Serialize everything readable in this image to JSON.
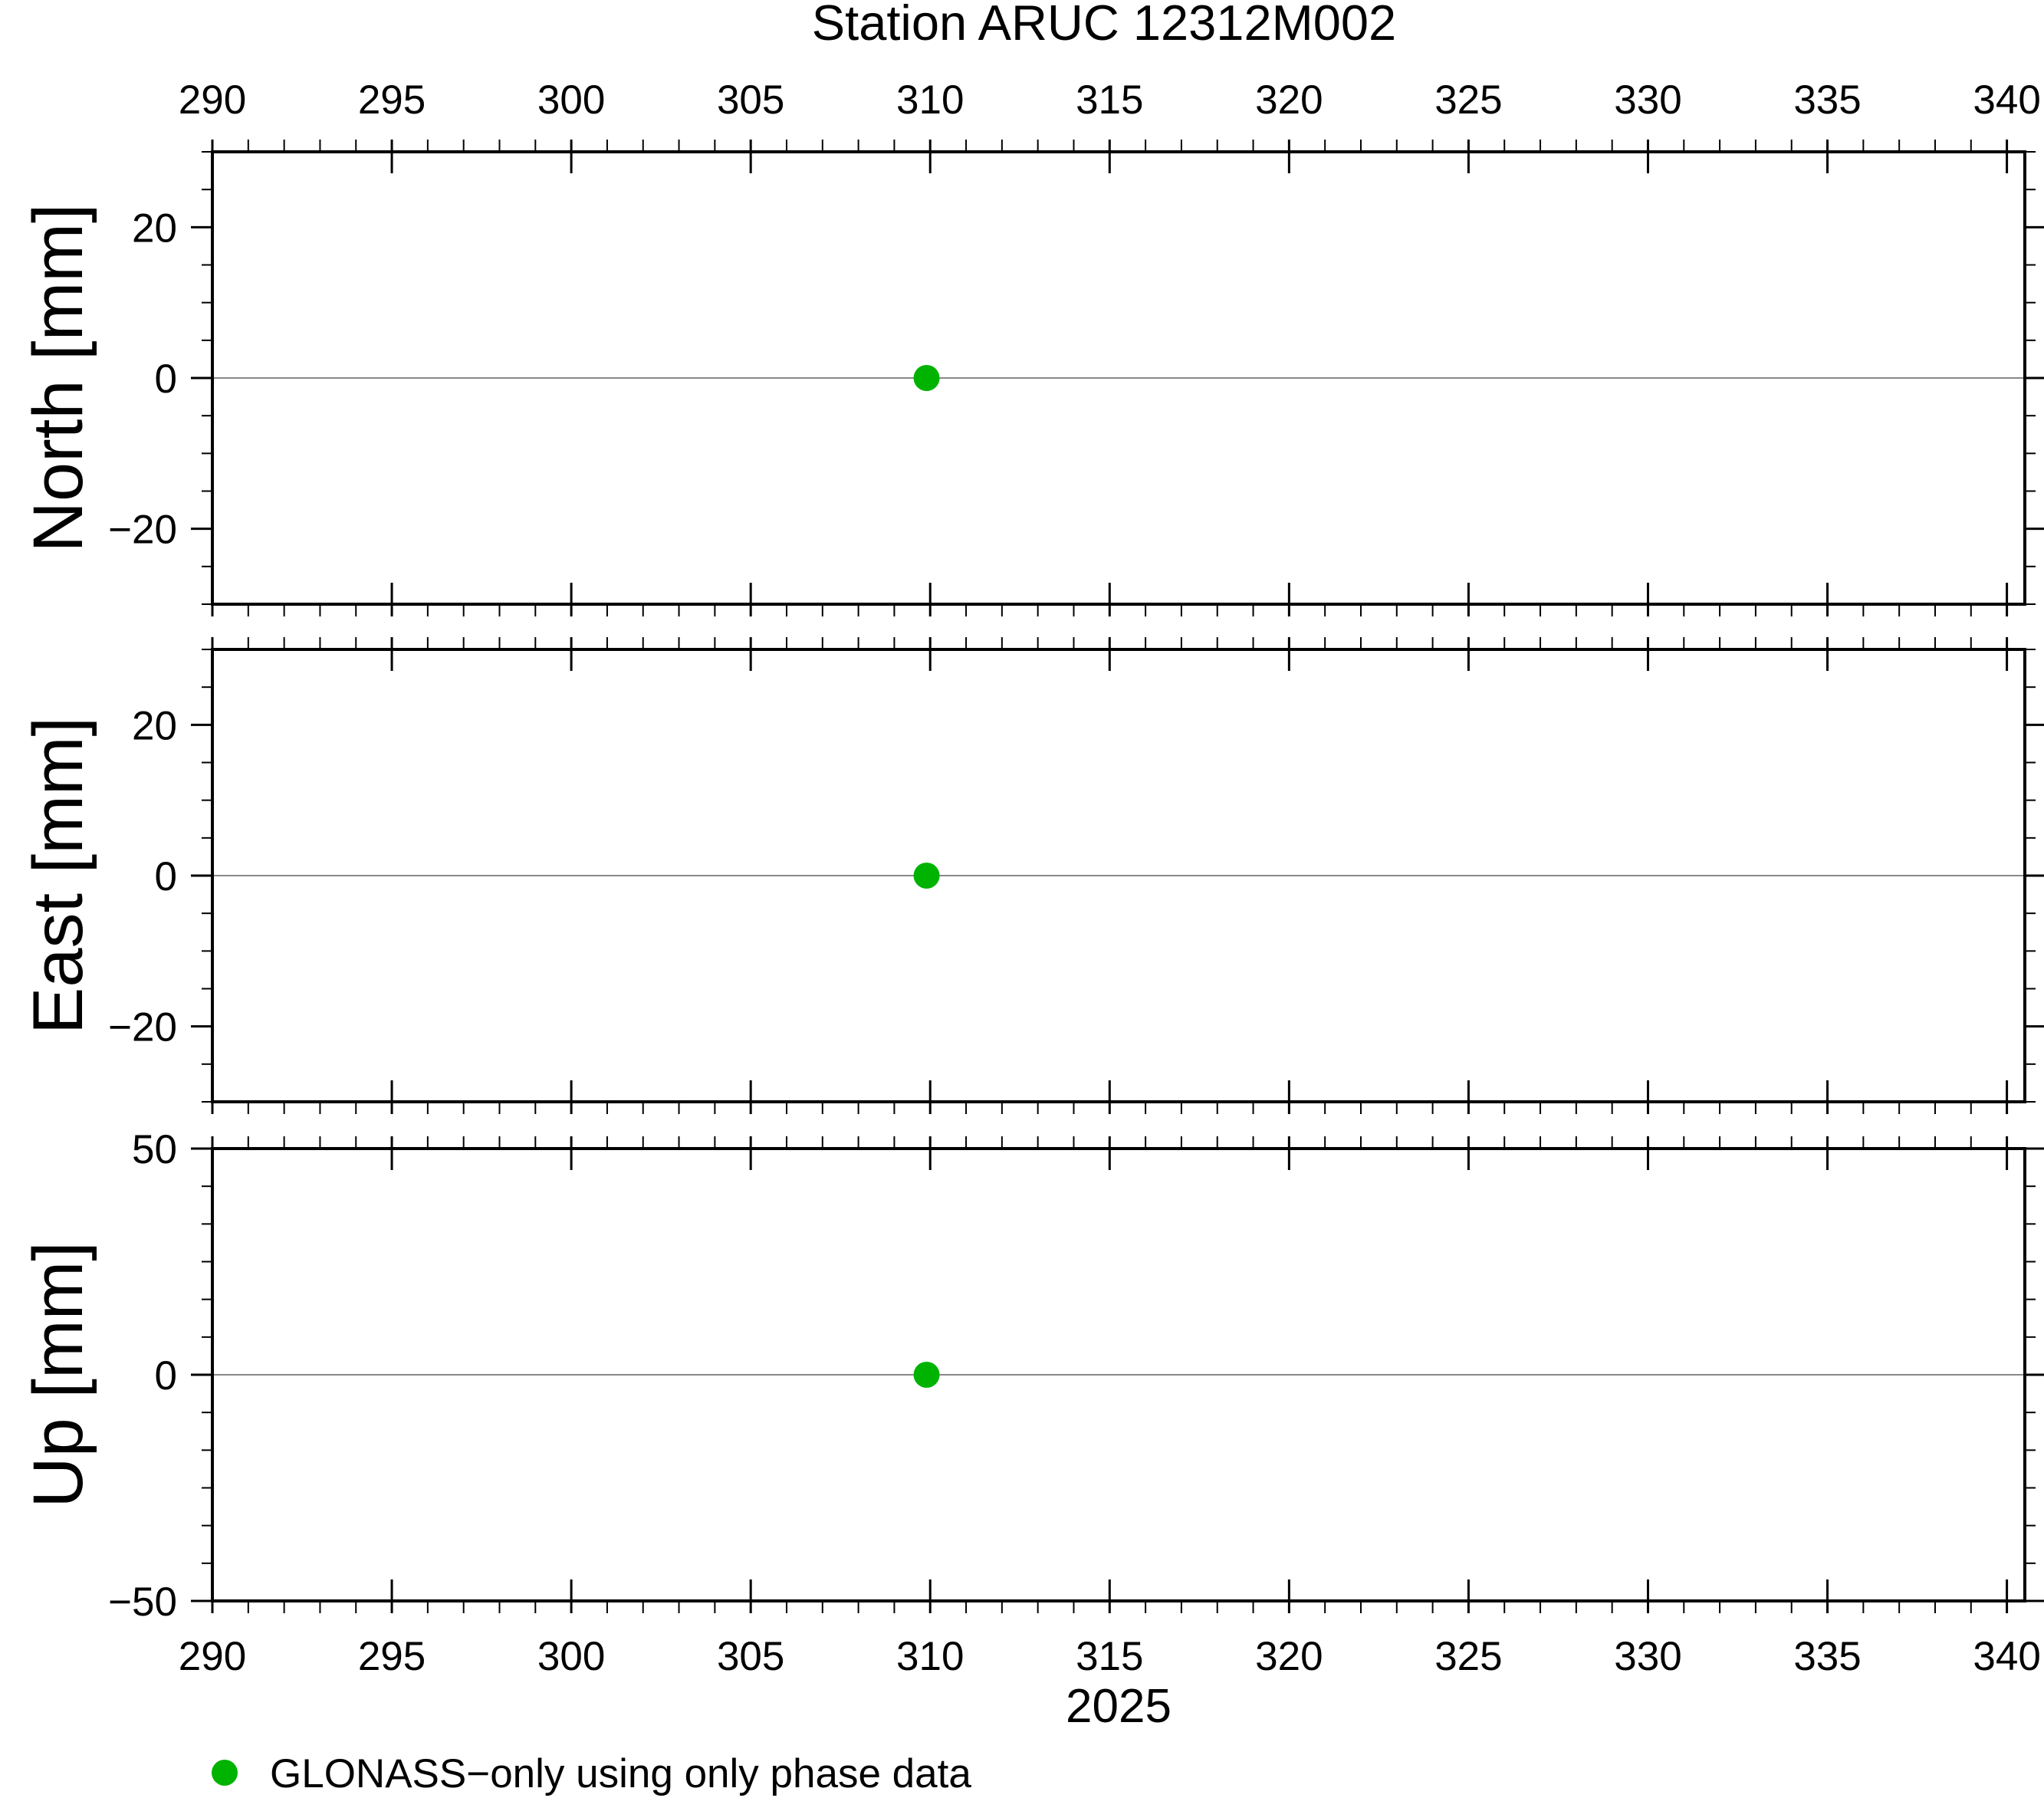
{
  "chart_data": [
    {
      "type": "scatter",
      "panel": "north",
      "title": "Station ARUC 12312M002",
      "ylabel": "North [mm]",
      "xlim": [
        290,
        340.5
      ],
      "ylim": [
        -30,
        30
      ],
      "x_ticks": [
        290,
        295,
        300,
        305,
        310,
        315,
        320,
        325,
        330,
        335,
        340
      ],
      "y_ticks": [
        -20,
        0,
        20
      ],
      "y_tick_labels": [
        "−20",
        "0",
        "20"
      ],
      "zero_line": true,
      "series": [
        {
          "name": "GLONASS−only using only phase data",
          "color": "#00b300",
          "points": [
            [
              309.9,
              0
            ]
          ]
        }
      ]
    },
    {
      "type": "scatter",
      "panel": "east",
      "ylabel": "East [mm]",
      "xlim": [
        290,
        340.5
      ],
      "ylim": [
        -30,
        30
      ],
      "x_ticks": [
        290,
        295,
        300,
        305,
        310,
        315,
        320,
        325,
        330,
        335,
        340
      ],
      "y_ticks": [
        -20,
        0,
        20
      ],
      "y_tick_labels": [
        "−20",
        "0",
        "20"
      ],
      "zero_line": true,
      "series": [
        {
          "name": "GLONASS−only using only phase data",
          "color": "#00b300",
          "points": [
            [
              309.9,
              0
            ]
          ]
        }
      ]
    },
    {
      "type": "scatter",
      "panel": "up",
      "ylabel": "Up [mm]",
      "xlabel": "2025",
      "xlim": [
        290,
        340.5
      ],
      "ylim": [
        -50,
        50
      ],
      "x_ticks": [
        290,
        295,
        300,
        305,
        310,
        315,
        320,
        325,
        330,
        335,
        340
      ],
      "y_ticks": [
        -50,
        0,
        50
      ],
      "y_tick_labels": [
        "−50",
        "0",
        "50"
      ],
      "zero_line": true,
      "series": [
        {
          "name": "GLONASS−only using only phase data",
          "color": "#00b300",
          "points": [
            [
              309.9,
              0
            ]
          ]
        }
      ]
    }
  ],
  "legend": {
    "label": "GLONASS−only using only phase data",
    "color": "#00b300"
  },
  "colors": {
    "marker": "#00b300",
    "zero_line": "#888888",
    "frame": "#000000"
  }
}
